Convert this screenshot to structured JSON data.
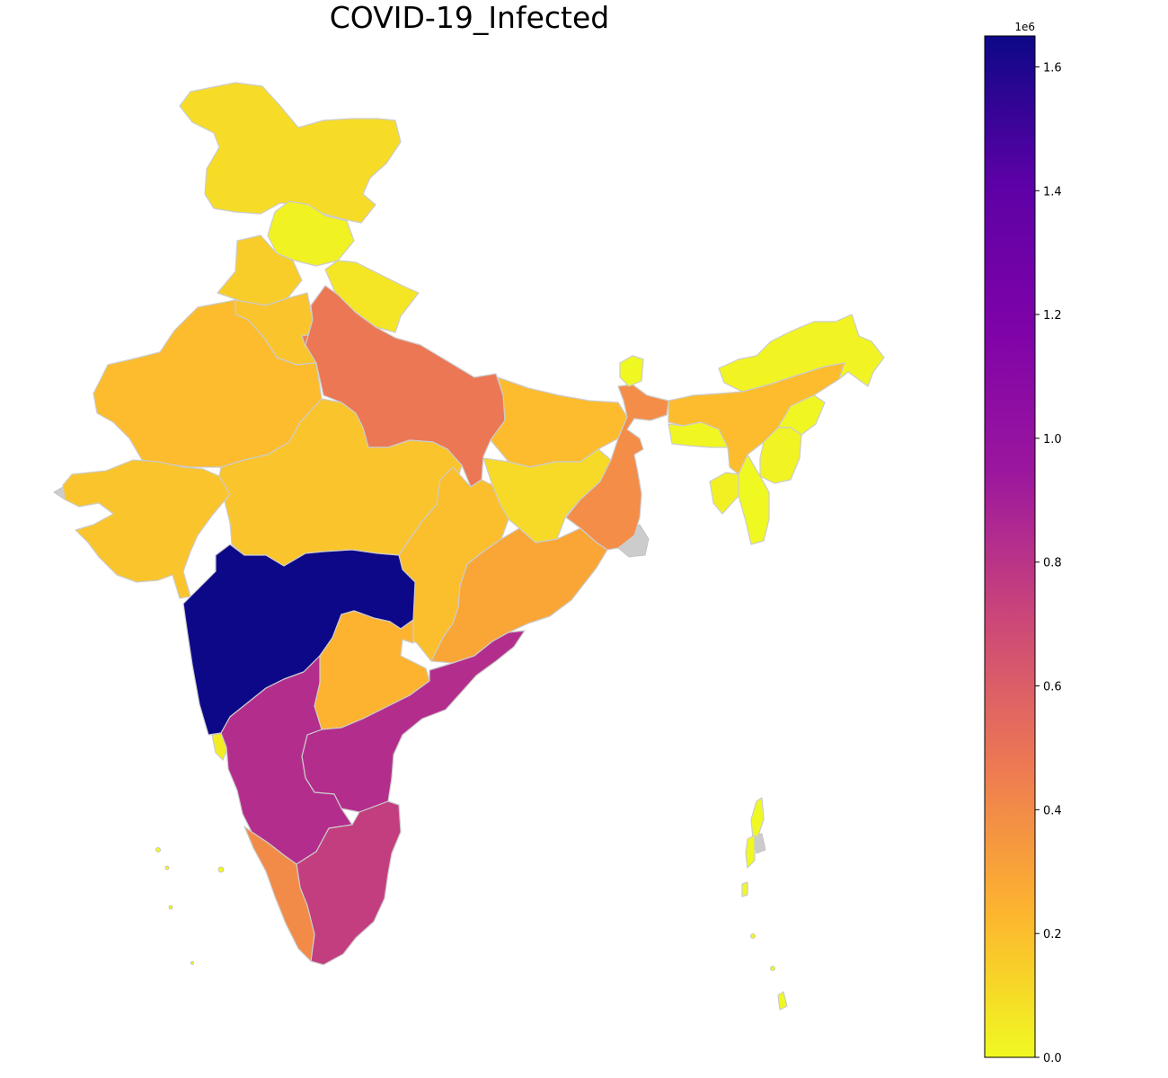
{
  "title": "COVID-19_Infected",
  "colorbar": {
    "colormap": "plasma_r",
    "vmin": 0,
    "vmax": 1650000,
    "exponent_label": "1e6",
    "ticks": [
      {
        "value": 0.0,
        "label": "0.0"
      },
      {
        "value": 0.2,
        "label": "0.2"
      },
      {
        "value": 0.4,
        "label": "0.4"
      },
      {
        "value": 0.6,
        "label": "0.6"
      },
      {
        "value": 0.8,
        "label": "0.8"
      },
      {
        "value": 1.0,
        "label": "1.0"
      },
      {
        "value": 1.2,
        "label": "1.2"
      },
      {
        "value": 1.4,
        "label": "1.4"
      },
      {
        "value": 1.6,
        "label": "1.6"
      }
    ],
    "stops": [
      "#f0f921",
      "#fdb42f",
      "#ed7953",
      "#cc4778",
      "#9c179e",
      "#7e03a8",
      "#5c01a6",
      "#0d0887"
    ]
  },
  "map": {
    "border_color": "#cccccc",
    "no_data_color": "#cccccc"
  },
  "chart_data": {
    "type": "choropleth",
    "title": "COVID-19_Infected",
    "region": "India (states)",
    "colorbar_range": [
      0,
      1650000
    ],
    "approximate_values_by_region": {
      "Maharashtra": 1650000,
      "Andhra Pradesh": 830000,
      "Karnataka": 830000,
      "Tamil Nadu": 750000,
      "Uttar Pradesh": 480000,
      "Kerala": 400000,
      "West Bengal": 390000,
      "Odisha": 290000,
      "Telangana": 240000,
      "Assam": 210000,
      "Bihar": 210000,
      "Rajasthan": 210000,
      "Gujarat": 180000,
      "Madhya Pradesh": 180000,
      "Chhattisgarh": 200000,
      "Haryana": 180000,
      "Punjab": 150000,
      "Jammu & Kashmir": 100000,
      "Jharkhand": 105000,
      "Uttarakhand": 65000,
      "Himachal Pradesh": 25000,
      "Goa": 45000,
      "Delhi": 450000,
      "Sikkim": 4000,
      "Tripura": 30000,
      "Meghalaya": 9000,
      "Manipur": 20000,
      "Nagaland": 9000,
      "Mizoram": 3000,
      "Arunachal Pradesh": 16000,
      "Andaman & Nicobar": 4500,
      "Lakshadweep": 0
    }
  }
}
